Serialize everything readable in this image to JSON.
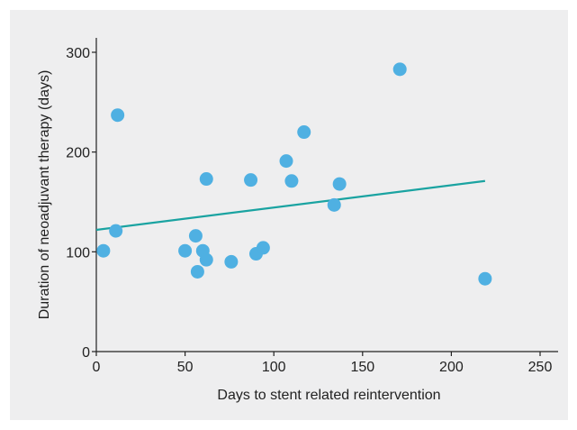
{
  "chart_data": {
    "type": "scatter",
    "title": "",
    "xlabel": "Days to stent related reintervention",
    "ylabel": "Duration of neoadjuvant therapy (days)",
    "xlim": [
      0,
      250
    ],
    "ylim": [
      0,
      300
    ],
    "xticks": [
      0,
      50,
      100,
      150,
      200,
      250
    ],
    "yticks": [
      0,
      100,
      200,
      300
    ],
    "grid": false,
    "legend": "none",
    "point_color": "#4fb0e2",
    "trend_color": "#1aa3a1",
    "points": [
      {
        "x": 4,
        "y": 101
      },
      {
        "x": 11,
        "y": 121
      },
      {
        "x": 12,
        "y": 237
      },
      {
        "x": 50,
        "y": 101
      },
      {
        "x": 56,
        "y": 116
      },
      {
        "x": 57,
        "y": 80
      },
      {
        "x": 60,
        "y": 101
      },
      {
        "x": 62,
        "y": 92
      },
      {
        "x": 62,
        "y": 173
      },
      {
        "x": 76,
        "y": 90
      },
      {
        "x": 87,
        "y": 172
      },
      {
        "x": 90,
        "y": 98
      },
      {
        "x": 94,
        "y": 104
      },
      {
        "x": 107,
        "y": 191
      },
      {
        "x": 110,
        "y": 171
      },
      {
        "x": 117,
        "y": 220
      },
      {
        "x": 134,
        "y": 147
      },
      {
        "x": 137,
        "y": 168
      },
      {
        "x": 171,
        "y": 283
      },
      {
        "x": 219,
        "y": 73
      }
    ],
    "trendline": {
      "x": [
        0,
        219
      ],
      "y": [
        122,
        171
      ]
    }
  }
}
